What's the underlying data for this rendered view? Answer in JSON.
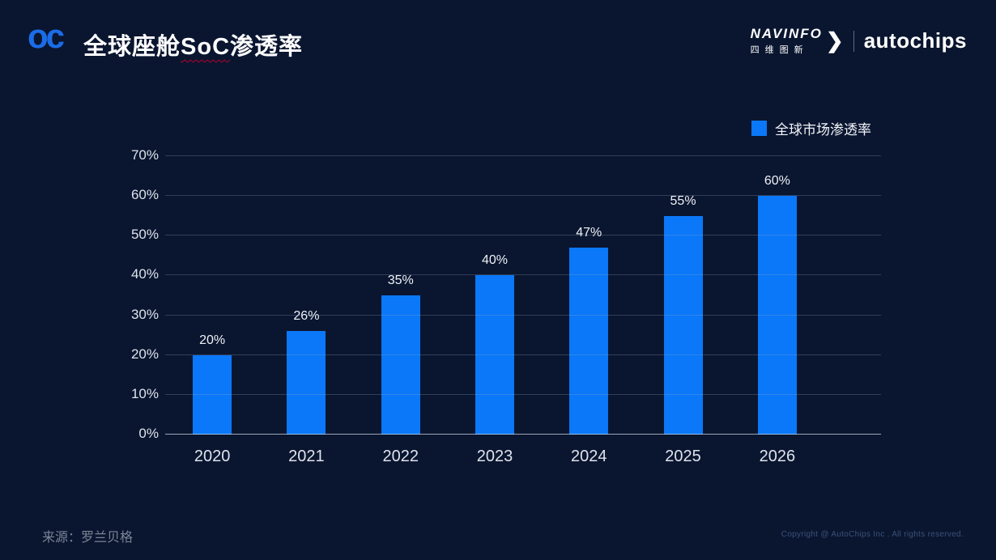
{
  "slide": {
    "logo_text": "oc",
    "title_prefix": "全球座舱",
    "title_highlight": "SoC",
    "title_suffix": "渗透率",
    "brand": {
      "navinfo_en": "NAVINFO",
      "navinfo_cn": "四维图新",
      "arrow": "❯",
      "autochips": "autochips"
    },
    "source": "来源：罗兰贝格",
    "copyright": "Copyright @ AutoChips Inc . All rights reserved."
  },
  "chart_data": {
    "type": "bar",
    "title": "全球座舱SoC渗透率",
    "categories": [
      "2020",
      "2021",
      "2022",
      "2023",
      "2024",
      "2025",
      "2026"
    ],
    "values": [
      20,
      26,
      35,
      40,
      47,
      55,
      60
    ],
    "value_labels": [
      "20%",
      "26%",
      "35%",
      "40%",
      "47%",
      "55%",
      "60%"
    ],
    "legend": "全球市场渗透率",
    "legend_position": "top-right",
    "xlabel": "",
    "ylabel": "",
    "ylim": [
      0,
      70
    ],
    "ytick_values": [
      0,
      10,
      20,
      30,
      40,
      50,
      60,
      70
    ],
    "ytick_labels": [
      "0%",
      "10%",
      "20%",
      "30%",
      "40%",
      "50%",
      "60%",
      "70%"
    ],
    "grid": true,
    "colors": {
      "bar": "#0a78f8",
      "background": "#0a1630",
      "gridline": "rgba(150,168,195,0.28)",
      "text": "#ffffff"
    }
  }
}
